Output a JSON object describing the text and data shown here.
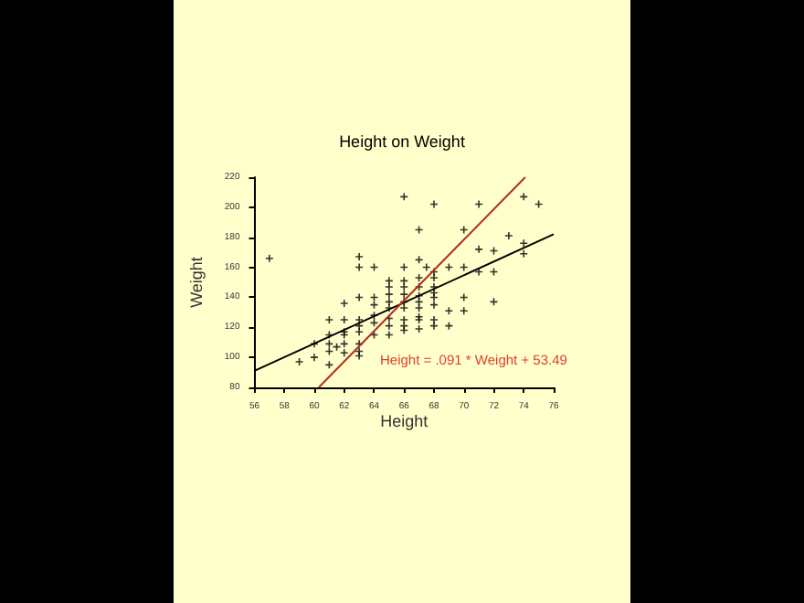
{
  "chart_data": {
    "type": "scatter",
    "title": "Height on Weight",
    "xlabel": "Height",
    "ylabel": "Weight",
    "xlim": [
      56,
      76
    ],
    "xticks": [
      56,
      58,
      60,
      62,
      64,
      66,
      68,
      70,
      72,
      74,
      76
    ],
    "ylim": [
      80,
      220
    ],
    "yticks": [
      80,
      100,
      120,
      140,
      160,
      180,
      200,
      220
    ],
    "grid": false,
    "annotations": [
      "Height = .091 * Weight + 53.49"
    ],
    "series": [
      {
        "marker": "cross",
        "color": "#000000",
        "x": [
          57,
          59,
          60,
          60,
          61,
          61,
          61,
          61,
          61,
          61.5,
          62,
          62,
          62,
          62,
          62,
          62,
          63,
          63,
          63,
          63,
          63,
          63,
          63,
          63,
          63,
          64,
          64,
          64,
          64,
          64,
          64,
          65,
          65,
          65,
          65,
          65,
          65,
          65,
          65,
          66,
          66,
          66,
          66,
          66,
          66,
          66,
          66,
          66,
          66,
          67,
          67,
          67,
          67,
          67,
          67,
          67,
          67,
          67,
          67,
          67.5,
          68,
          68,
          68,
          68,
          68,
          68,
          68,
          68,
          68,
          69,
          69,
          69,
          70,
          70,
          70,
          70,
          71,
          71,
          71,
          72,
          72,
          72,
          73,
          74,
          74,
          74,
          75
        ],
        "values": [
          166,
          97,
          100,
          109,
          125,
          115,
          109,
          104,
          95,
          107,
          136,
          125,
          117,
          115,
          109,
          103,
          140,
          125,
          121,
          117,
          109,
          104,
          101,
          167,
          160,
          140,
          135,
          128,
          123,
          115,
          160,
          151,
          147,
          142,
          137,
          133,
          126,
          121,
          115,
          151,
          147,
          142,
          137,
          133,
          125,
          121,
          118,
          160,
          207,
          153,
          147,
          141,
          137,
          133,
          127,
          125,
          119,
          165,
          185,
          160,
          153,
          147,
          143,
          140,
          135,
          125,
          121,
          202,
          157,
          131,
          121,
          160,
          140,
          131,
          160,
          185,
          202,
          172,
          157,
          137,
          171,
          157,
          181,
          207,
          176,
          169,
          202
        ]
      },
      {
        "type": "line",
        "marker": "none",
        "color": "#000000",
        "x": [
          56,
          76
        ],
        "values": [
          91,
          182
        ]
      },
      {
        "type": "line",
        "marker": "none",
        "color": "#b03020",
        "x": [
          60.3,
          74.1
        ],
        "values": [
          80,
          220
        ]
      }
    ]
  }
}
